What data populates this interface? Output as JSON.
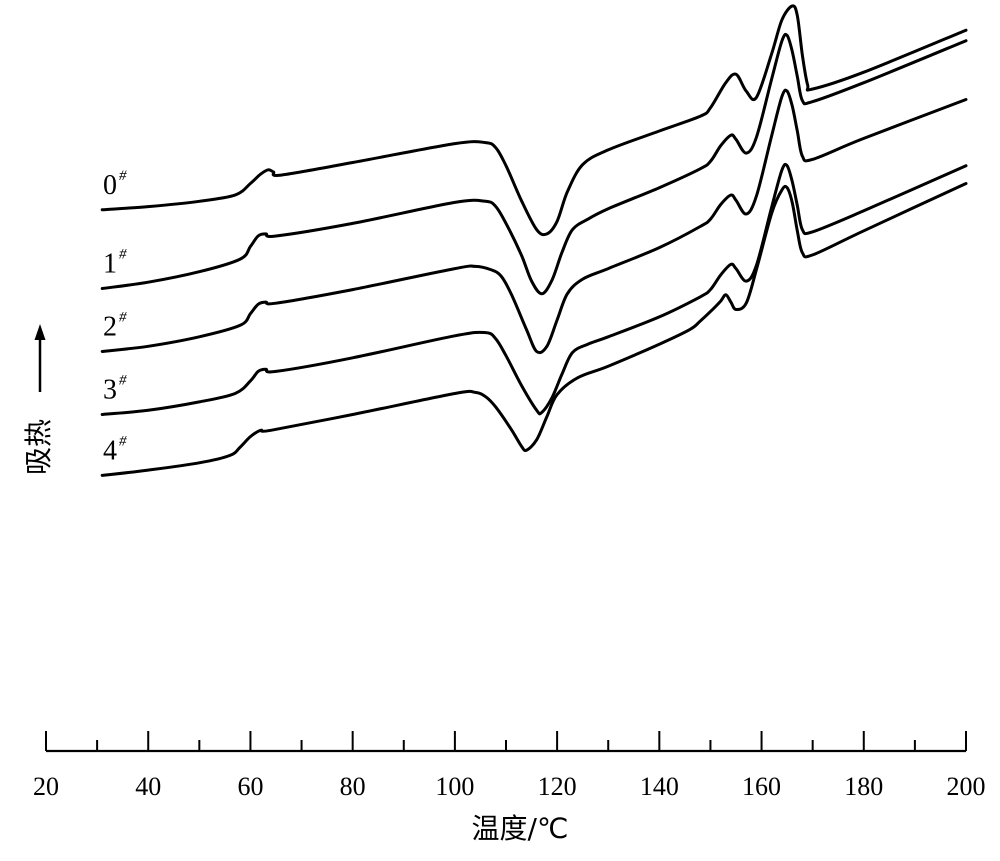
{
  "chart_data": {
    "type": "line",
    "xlabel": "温度/℃",
    "ylabel": "吸热",
    "xlim": [
      20,
      200
    ],
    "x_ticks": [
      "20",
      "40",
      "60",
      "80",
      "100",
      "120",
      "140",
      "160",
      "180",
      "200"
    ],
    "x_minor_step": 10,
    "y_arrow": "up",
    "grid": false,
    "series": [
      {
        "name": "0#",
        "label_main": "0",
        "label_sup": "#",
        "x": [
          31,
          40,
          50,
          57,
          60,
          62,
          63.5,
          64.5,
          66,
          80,
          100,
          106,
          108,
          110,
          113,
          116,
          118,
          120,
          122,
          125,
          130,
          140,
          148,
          150,
          153,
          155,
          157,
          159,
          162,
          164,
          166,
          167,
          168,
          169,
          170,
          180,
          200
        ],
        "y": [
          -13.5,
          -13.2,
          -12.7,
          -12.1,
          -11.0,
          -10.1,
          -9.7,
          -9.9,
          -10.2,
          -9.0,
          -7.2,
          -7.1,
          -7.6,
          -9.3,
          -12.6,
          -15.4,
          -15.8,
          -14.6,
          -11.8,
          -9.2,
          -7.8,
          -6.0,
          -4.6,
          -3.8,
          -1.4,
          -0.6,
          -2.2,
          -2.8,
          1.4,
          4.6,
          5.9,
          5.0,
          1.2,
          -1.6,
          -2.0,
          -0.4,
          3.6
        ]
      },
      {
        "name": "1#",
        "label_main": "1",
        "label_sup": "#",
        "x": [
          31,
          40,
          50,
          58,
          60,
          61.5,
          63,
          65,
          80,
          100,
          106,
          108,
          110,
          113,
          115,
          117,
          119,
          121,
          123,
          126,
          130,
          140,
          148,
          150,
          152,
          154,
          155,
          157,
          159,
          162,
          164,
          165,
          166,
          167,
          168,
          170,
          180,
          200
        ],
        "y": [
          -21.0,
          -20.4,
          -19.4,
          -18.2,
          -17.0,
          -16.0,
          -15.8,
          -16.0,
          -14.8,
          -12.8,
          -12.7,
          -13.2,
          -14.8,
          -17.8,
          -20.3,
          -21.5,
          -20.2,
          -17.5,
          -15.4,
          -14.4,
          -13.4,
          -11.4,
          -9.6,
          -8.9,
          -7.4,
          -6.4,
          -6.8,
          -8.1,
          -6.6,
          -1.0,
          2.6,
          3.1,
          1.6,
          -0.8,
          -3.1,
          -3.2,
          -1.4,
          2.6
        ]
      },
      {
        "name": "2#",
        "label_main": "2",
        "label_sup": "#",
        "x": [
          31,
          40,
          50,
          58,
          60,
          61.5,
          63,
          65,
          80,
          100,
          104,
          107,
          109,
          111,
          114,
          116,
          118,
          120,
          122,
          125,
          130,
          140,
          148,
          150,
          152,
          154,
          155,
          157,
          159,
          162,
          164,
          165,
          166,
          167,
          168,
          170,
          180,
          200
        ],
        "y": [
          -27.0,
          -26.5,
          -25.6,
          -24.5,
          -23.4,
          -22.5,
          -22.3,
          -22.4,
          -21.1,
          -19.1,
          -18.9,
          -19.2,
          -19.8,
          -21.5,
          -24.9,
          -27.0,
          -26.5,
          -24.0,
          -21.5,
          -20.1,
          -19.1,
          -17.1,
          -15.1,
          -14.4,
          -13.0,
          -12.1,
          -12.6,
          -13.9,
          -12.2,
          -6.4,
          -2.7,
          -2.2,
          -3.6,
          -6.0,
          -8.4,
          -8.7,
          -6.7,
          -3.0
        ]
      },
      {
        "name": "3#",
        "label_main": "3",
        "label_sup": "#",
        "x": [
          31,
          40,
          50,
          57,
          60,
          61.5,
          63,
          65,
          80,
          100,
          106,
          108,
          110,
          113,
          116,
          117,
          119,
          121,
          123,
          126,
          130,
          140,
          148,
          150,
          152,
          154,
          155,
          157,
          159,
          162,
          164,
          165,
          166,
          167,
          168,
          170,
          180,
          200
        ],
        "y": [
          -33.0,
          -32.6,
          -31.8,
          -31.0,
          -29.8,
          -28.9,
          -28.7,
          -28.9,
          -27.6,
          -25.5,
          -25.2,
          -25.8,
          -27.4,
          -30.2,
          -32.6,
          -32.8,
          -31.4,
          -29.1,
          -27.1,
          -26.3,
          -25.6,
          -23.7,
          -21.8,
          -21.1,
          -19.7,
          -18.7,
          -19.1,
          -20.3,
          -18.8,
          -13.2,
          -9.7,
          -9.3,
          -10.8,
          -13.1,
          -15.4,
          -15.6,
          -13.6,
          -9.3
        ]
      },
      {
        "name": "4#",
        "label_main": "4",
        "label_sup": "#",
        "x": [
          31,
          40,
          50,
          56,
          58,
          60,
          62,
          64,
          80,
          100,
          104,
          106,
          108,
          111,
          113,
          114,
          116,
          118,
          120,
          124,
          130,
          140,
          146,
          148,
          150,
          152,
          153,
          154,
          155,
          157,
          159,
          162,
          164,
          165,
          166,
          167,
          168,
          170,
          180,
          200
        ],
        "y": [
          -38.8,
          -38.3,
          -37.6,
          -36.9,
          -36.1,
          -35.1,
          -34.5,
          -34.5,
          -33.0,
          -31.0,
          -30.9,
          -31.3,
          -32.3,
          -34.4,
          -36.0,
          -36.4,
          -35.4,
          -33.2,
          -31.1,
          -29.5,
          -28.4,
          -26.3,
          -24.9,
          -24.1,
          -23.2,
          -22.2,
          -21.6,
          -22.3,
          -23.0,
          -22.4,
          -19.2,
          -13.8,
          -11.6,
          -11.4,
          -12.8,
          -15.5,
          -17.6,
          -17.8,
          -15.5,
          -11.0
        ]
      }
    ]
  }
}
